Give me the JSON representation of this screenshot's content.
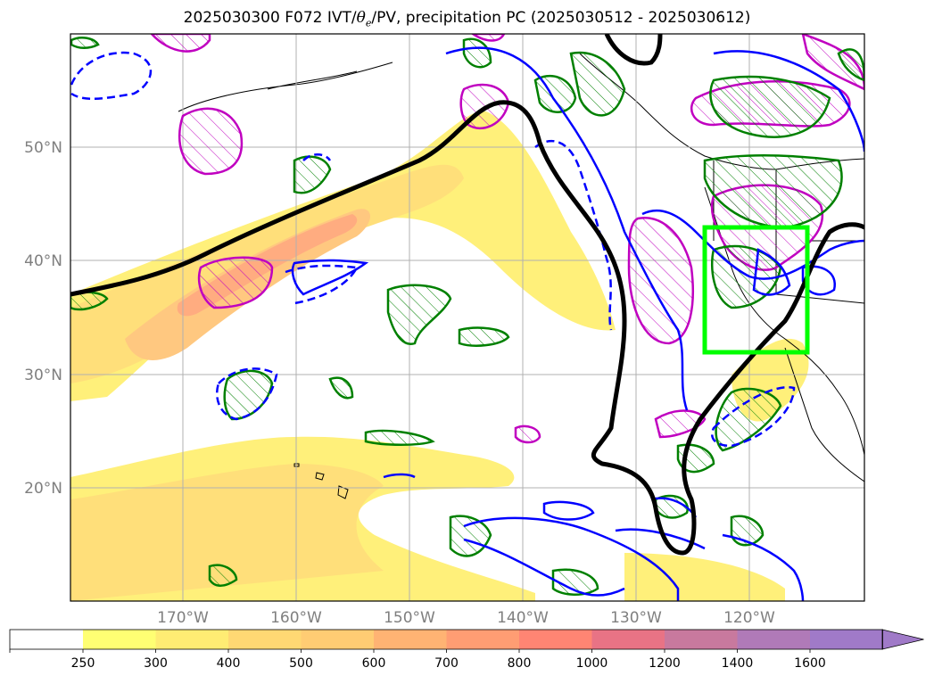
{
  "title": {
    "before": "2025030300 F072 IVT/",
    "theta": "θ",
    "sub": "e",
    "after": "/PV, precipitation PC (2025030512 - 2025030612)"
  },
  "map": {
    "lat_labels": [
      "50°N",
      "40°N",
      "30°N",
      "20°N"
    ],
    "lon_labels": [
      "170°W",
      "160°W",
      "150°W",
      "140°W",
      "130°W",
      "120°W"
    ],
    "box_color": "#00ff00",
    "frame_color": "#000000"
  },
  "colorbar": {
    "ticks": [
      "250",
      "300",
      "400",
      "500",
      "600",
      "700",
      "800",
      "1000",
      "1200",
      "1400",
      "1600"
    ],
    "colors": [
      "#ffffff",
      "#ffff73",
      "#ffec73",
      "#ffd873",
      "#ffcc73",
      "#ffb373",
      "#ff9d73",
      "#ff8573",
      "#e87385",
      "#c8799e",
      "#b07ab8",
      "#a07ac8"
    ]
  },
  "legend_colors": {
    "ivt_fill": [
      "#fff07a",
      "#ffdf7a",
      "#ffc880",
      "#ffac80"
    ],
    "contour_black": "#000000",
    "contour_blue": "#0000ff",
    "contour_green": "#008000",
    "contour_magenta": "#c000c0"
  }
}
